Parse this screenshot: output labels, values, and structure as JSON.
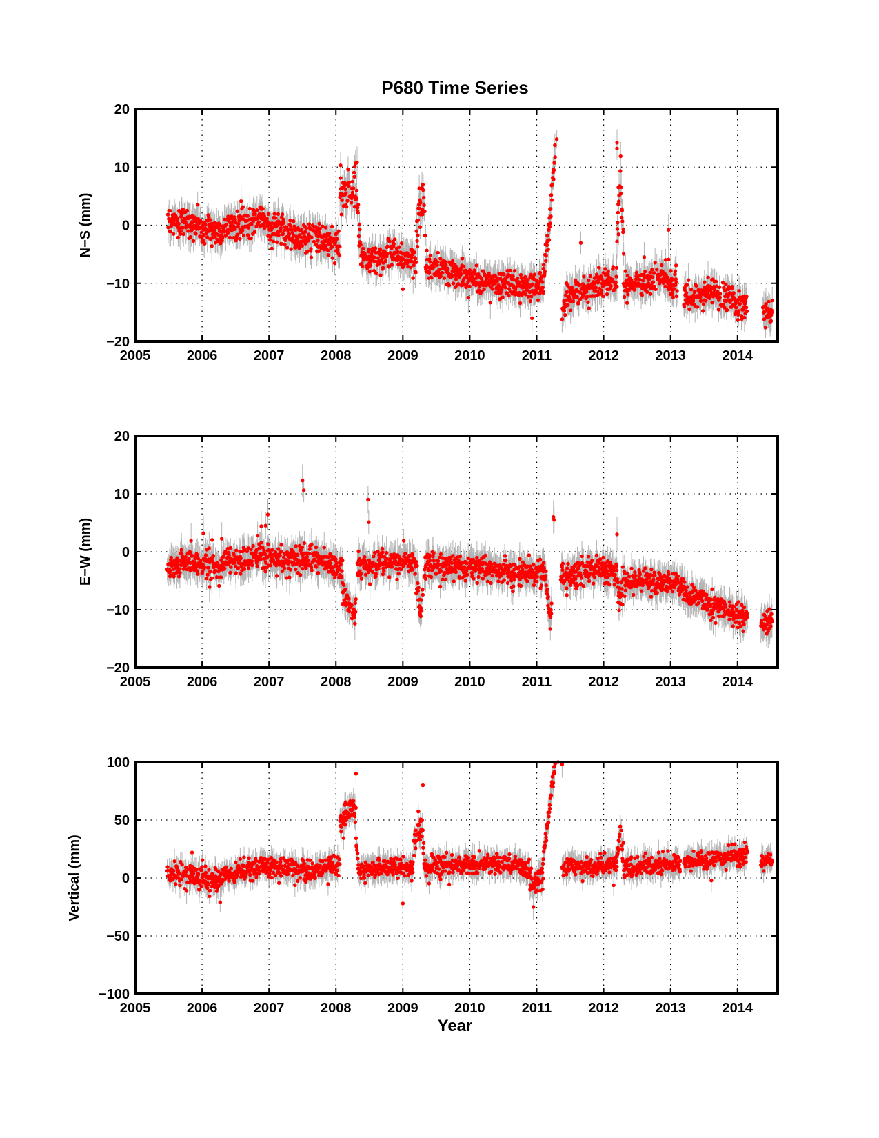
{
  "figure": {
    "title": "P680 Time Series",
    "xlabel": "Year"
  },
  "colors": {
    "points": "#ff0000",
    "error_bars": "#b3b3b3",
    "axes": "#000000",
    "grid": "#000000"
  },
  "chart_data": [
    {
      "type": "scatter",
      "title": "P680 Time Series",
      "xlabel": "",
      "ylabel": "N−S (mm)",
      "xlim": [
        2005,
        2014.6
      ],
      "ylim": [
        -20,
        20
      ],
      "xticks": [
        2005,
        2006,
        2007,
        2008,
        2009,
        2010,
        2011,
        2012,
        2013,
        2014
      ],
      "yticks": [
        -20,
        -10,
        0,
        10,
        20
      ],
      "yticklabels": [
        "−20",
        "−10",
        "0",
        "10",
        "20"
      ],
      "grid": "dotted",
      "error_bars": true,
      "error": 2.2,
      "segments": [
        {
          "x": [
            2005.48,
            2005.75,
            2006.0,
            2006.25,
            2006.5,
            2006.75,
            2006.9,
            2007.0,
            2007.25,
            2007.5,
            2007.75,
            2008.0,
            2008.06
          ],
          "y": [
            0.8,
            0.5,
            -0.5,
            -1.5,
            0.0,
            1.5,
            1.5,
            0.0,
            -1.5,
            -2.0,
            -2.5,
            -3.0,
            -3.5
          ],
          "noise": 1.3
        },
        {
          "x": [
            2008.06,
            2008.15,
            2008.25,
            2008.32
          ],
          "y": [
            5.0,
            5.5,
            6.5,
            5.0
          ],
          "noise": 1.8
        },
        {
          "x": [
            2008.32,
            2008.36,
            2008.42
          ],
          "y": [
            3.0,
            -3.0,
            -6.5
          ],
          "noise": 1.5
        },
        {
          "x": [
            2008.42,
            2008.6,
            2008.8,
            2009.0,
            2009.2
          ],
          "y": [
            -6.0,
            -5.5,
            -5.0,
            -5.5,
            -6.0
          ],
          "noise": 1.1
        },
        {
          "x": [
            2009.2,
            2009.25,
            2009.3,
            2009.34
          ],
          "y": [
            -3.0,
            3.0,
            5.0,
            1.0
          ],
          "noise": 1.8
        },
        {
          "x": [
            2009.34,
            2009.5,
            2009.75,
            2010.0,
            2010.25,
            2010.5,
            2010.75,
            2011.0,
            2011.1
          ],
          "y": [
            -7.0,
            -7.5,
            -8.0,
            -9.0,
            -10.0,
            -10.0,
            -10.5,
            -10.5,
            -11.0
          ],
          "noise": 1.2
        },
        {
          "x": [
            2011.1,
            2011.17,
            2011.22,
            2011.26,
            2011.28
          ],
          "y": [
            -8.0,
            -2.0,
            5.0,
            10.0,
            12.5
          ],
          "noise": 1.2
        },
        {
          "x": [
            2011.38,
            2011.5,
            2011.75,
            2012.0,
            2012.2
          ],
          "y": [
            -14.0,
            -12.0,
            -10.5,
            -10.0,
            -10.5
          ],
          "noise": 1.2
        },
        {
          "x": [
            2012.2,
            2012.25,
            2012.3
          ],
          "y": [
            -3.0,
            9.0,
            -5.0
          ],
          "noise": 2.0
        },
        {
          "x": [
            2012.3,
            2012.5,
            2012.75,
            2012.9,
            2013.1
          ],
          "y": [
            -11.0,
            -10.5,
            -9.5,
            -9.0,
            -10.5
          ],
          "noise": 1.2
        },
        {
          "x": [
            2013.2,
            2013.4,
            2013.6,
            2013.8,
            2014.0,
            2014.15
          ],
          "y": [
            -12.5,
            -12.0,
            -11.0,
            -12.0,
            -13.5,
            -14.0
          ],
          "noise": 1.2
        },
        {
          "x": [
            2014.38,
            2014.45,
            2014.52
          ],
          "y": [
            -15.0,
            -15.5,
            -14.5
          ],
          "noise": 1.2
        }
      ],
      "outliers": [
        {
          "x": 2011.3,
          "y": 14.8
        },
        {
          "x": 2012.2,
          "y": 14.2
        },
        {
          "x": 2012.2,
          "y": 13.2
        },
        {
          "x": 2012.22,
          "y": 6.5
        },
        {
          "x": 2012.97,
          "y": -0.8
        },
        {
          "x": 2008.07,
          "y": 10.3
        },
        {
          "x": 2008.28,
          "y": 10.1
        },
        {
          "x": 2009.0,
          "y": -11.0
        },
        {
          "x": 2010.93,
          "y": -16.0
        }
      ]
    },
    {
      "type": "scatter",
      "title": "",
      "xlabel": "",
      "ylabel": "E−W (mm)",
      "xlim": [
        2005,
        2014.6
      ],
      "ylim": [
        -20,
        20
      ],
      "xticks": [
        2005,
        2006,
        2007,
        2008,
        2009,
        2010,
        2011,
        2012,
        2013,
        2014
      ],
      "yticks": [
        -20,
        -10,
        0,
        10,
        20
      ],
      "yticklabels": [
        "−20",
        "−10",
        "0",
        "10",
        "20"
      ],
      "grid": "dotted",
      "error_bars": true,
      "error": 2.3,
      "segments": [
        {
          "x": [
            2005.48,
            2005.75,
            2006.0,
            2006.25,
            2006.5,
            2006.75,
            2007.0,
            2007.25,
            2007.5,
            2007.75,
            2008.0,
            2008.1
          ],
          "y": [
            -2.5,
            -2.0,
            -2.0,
            -2.5,
            -1.5,
            -0.5,
            -1.0,
            -1.5,
            -1.0,
            -1.5,
            -3.0,
            -3.5
          ],
          "noise": 1.2
        },
        {
          "x": [
            2008.1,
            2008.18,
            2008.25,
            2008.3
          ],
          "y": [
            -6.0,
            -9.0,
            -10.5,
            -10.0
          ],
          "noise": 1.3
        },
        {
          "x": [
            2008.32,
            2008.5,
            2008.75,
            2009.0,
            2009.2
          ],
          "y": [
            -2.5,
            -2.5,
            -2.0,
            -2.0,
            -2.0
          ],
          "noise": 1.0
        },
        {
          "x": [
            2009.2,
            2009.26,
            2009.3
          ],
          "y": [
            -5.0,
            -10.0,
            -6.0
          ],
          "noise": 1.5
        },
        {
          "x": [
            2009.32,
            2009.5,
            2009.75,
            2010.0,
            2010.25,
            2010.5,
            2010.75,
            2011.0,
            2011.15
          ],
          "y": [
            -2.5,
            -2.5,
            -2.5,
            -2.5,
            -3.0,
            -3.5,
            -3.5,
            -3.5,
            -3.5
          ],
          "noise": 1.0
        },
        {
          "x": [
            2011.15,
            2011.2,
            2011.23
          ],
          "y": [
            -7.0,
            -11.0,
            -11.5
          ],
          "noise": 1.0
        },
        {
          "x": [
            2011.36,
            2011.5,
            2011.75,
            2012.0,
            2012.2
          ],
          "y": [
            -4.0,
            -4.0,
            -3.0,
            -3.0,
            -3.5
          ],
          "noise": 1.1
        },
        {
          "x": [
            2012.2,
            2012.25,
            2012.3
          ],
          "y": [
            -5.0,
            -8.0,
            -6.0
          ],
          "noise": 1.5
        },
        {
          "x": [
            2012.3,
            2012.5,
            2012.75,
            2013.0,
            2013.2
          ],
          "y": [
            -5.0,
            -5.0,
            -5.0,
            -5.5,
            -6.0
          ],
          "noise": 1.0
        },
        {
          "x": [
            2013.2,
            2013.5,
            2013.75,
            2014.0,
            2014.15
          ],
          "y": [
            -7.0,
            -8.5,
            -9.5,
            -11.0,
            -11.5
          ],
          "noise": 1.0
        },
        {
          "x": [
            2014.35,
            2014.45,
            2014.52
          ],
          "y": [
            -11.5,
            -12.0,
            -12.0
          ],
          "noise": 1.0
        }
      ],
      "outliers": [
        {
          "x": 2007.5,
          "y": 12.3
        },
        {
          "x": 2007.52,
          "y": 10.6
        },
        {
          "x": 2008.48,
          "y": 9.0
        },
        {
          "x": 2008.49,
          "y": 5.1
        },
        {
          "x": 2011.25,
          "y": 6.0
        },
        {
          "x": 2011.26,
          "y": 5.5
        },
        {
          "x": 2006.02,
          "y": 3.2
        },
        {
          "x": 2006.95,
          "y": 4.5
        },
        {
          "x": 2012.2,
          "y": 3.0
        }
      ]
    },
    {
      "type": "scatter",
      "title": "",
      "xlabel": "Year",
      "ylabel": "Vertical (mm)",
      "xlim": [
        2005,
        2014.6
      ],
      "ylim": [
        -100,
        100
      ],
      "xticks": [
        2005,
        2006,
        2007,
        2008,
        2009,
        2010,
        2011,
        2012,
        2013,
        2014
      ],
      "yticks": [
        -100,
        -50,
        0,
        50,
        100
      ],
      "yticklabels": [
        "−100",
        "−50",
        "0",
        "50",
        "100"
      ],
      "grid": "dotted",
      "error_bars": true,
      "error": 9,
      "segments": [
        {
          "x": [
            2005.48,
            2005.75,
            2006.0,
            2006.1,
            2006.25,
            2006.5,
            2006.75,
            2007.0,
            2007.25,
            2007.5,
            2007.75,
            2008.0,
            2008.06
          ],
          "y": [
            4,
            3,
            2,
            -4,
            -2,
            5,
            8,
            10,
            7,
            7,
            8,
            10,
            11
          ],
          "noise": 4.5
        },
        {
          "x": [
            2008.06,
            2008.15,
            2008.25,
            2008.3
          ],
          "y": [
            48,
            55,
            60,
            55
          ],
          "noise": 6.5
        },
        {
          "x": [
            2008.3,
            2008.34,
            2008.38
          ],
          "y": [
            30,
            10,
            2
          ],
          "noise": 5
        },
        {
          "x": [
            2008.38,
            2008.6,
            2008.8,
            2009.0,
            2009.15
          ],
          "y": [
            7,
            8,
            9,
            10,
            8
          ],
          "noise": 4
        },
        {
          "x": [
            2009.15,
            2009.22,
            2009.28,
            2009.32
          ],
          "y": [
            25,
            40,
            45,
            20
          ],
          "noise": 6
        },
        {
          "x": [
            2009.32,
            2009.5,
            2009.75,
            2010.0,
            2010.25,
            2010.5,
            2010.75,
            2010.9
          ],
          "y": [
            9,
            10,
            11,
            11,
            12,
            12,
            10,
            6
          ],
          "noise": 4
        },
        {
          "x": [
            2010.9,
            2011.0,
            2011.1
          ],
          "y": [
            -5,
            -3,
            5
          ],
          "noise": 5
        },
        {
          "x": [
            2011.1,
            2011.15,
            2011.2,
            2011.25,
            2011.28
          ],
          "y": [
            20,
            40,
            65,
            90,
            98
          ],
          "noise": 4
        },
        {
          "x": [
            2011.38,
            2011.6,
            2011.8,
            2012.0,
            2012.2
          ],
          "y": [
            8,
            9,
            10,
            11,
            12
          ],
          "noise": 4
        },
        {
          "x": [
            2012.2,
            2012.25,
            2012.3
          ],
          "y": [
            20,
            40,
            15
          ],
          "noise": 6
        },
        {
          "x": [
            2012.3,
            2012.5,
            2012.75,
            2013.0,
            2013.15
          ],
          "y": [
            8,
            10,
            11,
            12,
            14
          ],
          "noise": 4
        },
        {
          "x": [
            2013.2,
            2013.5,
            2013.75,
            2014.0,
            2014.15
          ],
          "y": [
            14,
            16,
            17,
            18,
            20
          ],
          "noise": 4
        },
        {
          "x": [
            2014.35,
            2014.45,
            2014.52
          ],
          "y": [
            14,
            15,
            14
          ],
          "noise": 3.5
        }
      ],
      "outliers": [
        {
          "x": 2009.3,
          "y": 80
        },
        {
          "x": 2008.3,
          "y": 90
        },
        {
          "x": 2011.38,
          "y": 98
        },
        {
          "x": 2011.32,
          "y": 100
        },
        {
          "x": 2009.0,
          "y": -22
        },
        {
          "x": 2010.95,
          "y": -25
        },
        {
          "x": 2005.85,
          "y": 22
        },
        {
          "x": 2006.27,
          "y": -21
        }
      ]
    }
  ]
}
